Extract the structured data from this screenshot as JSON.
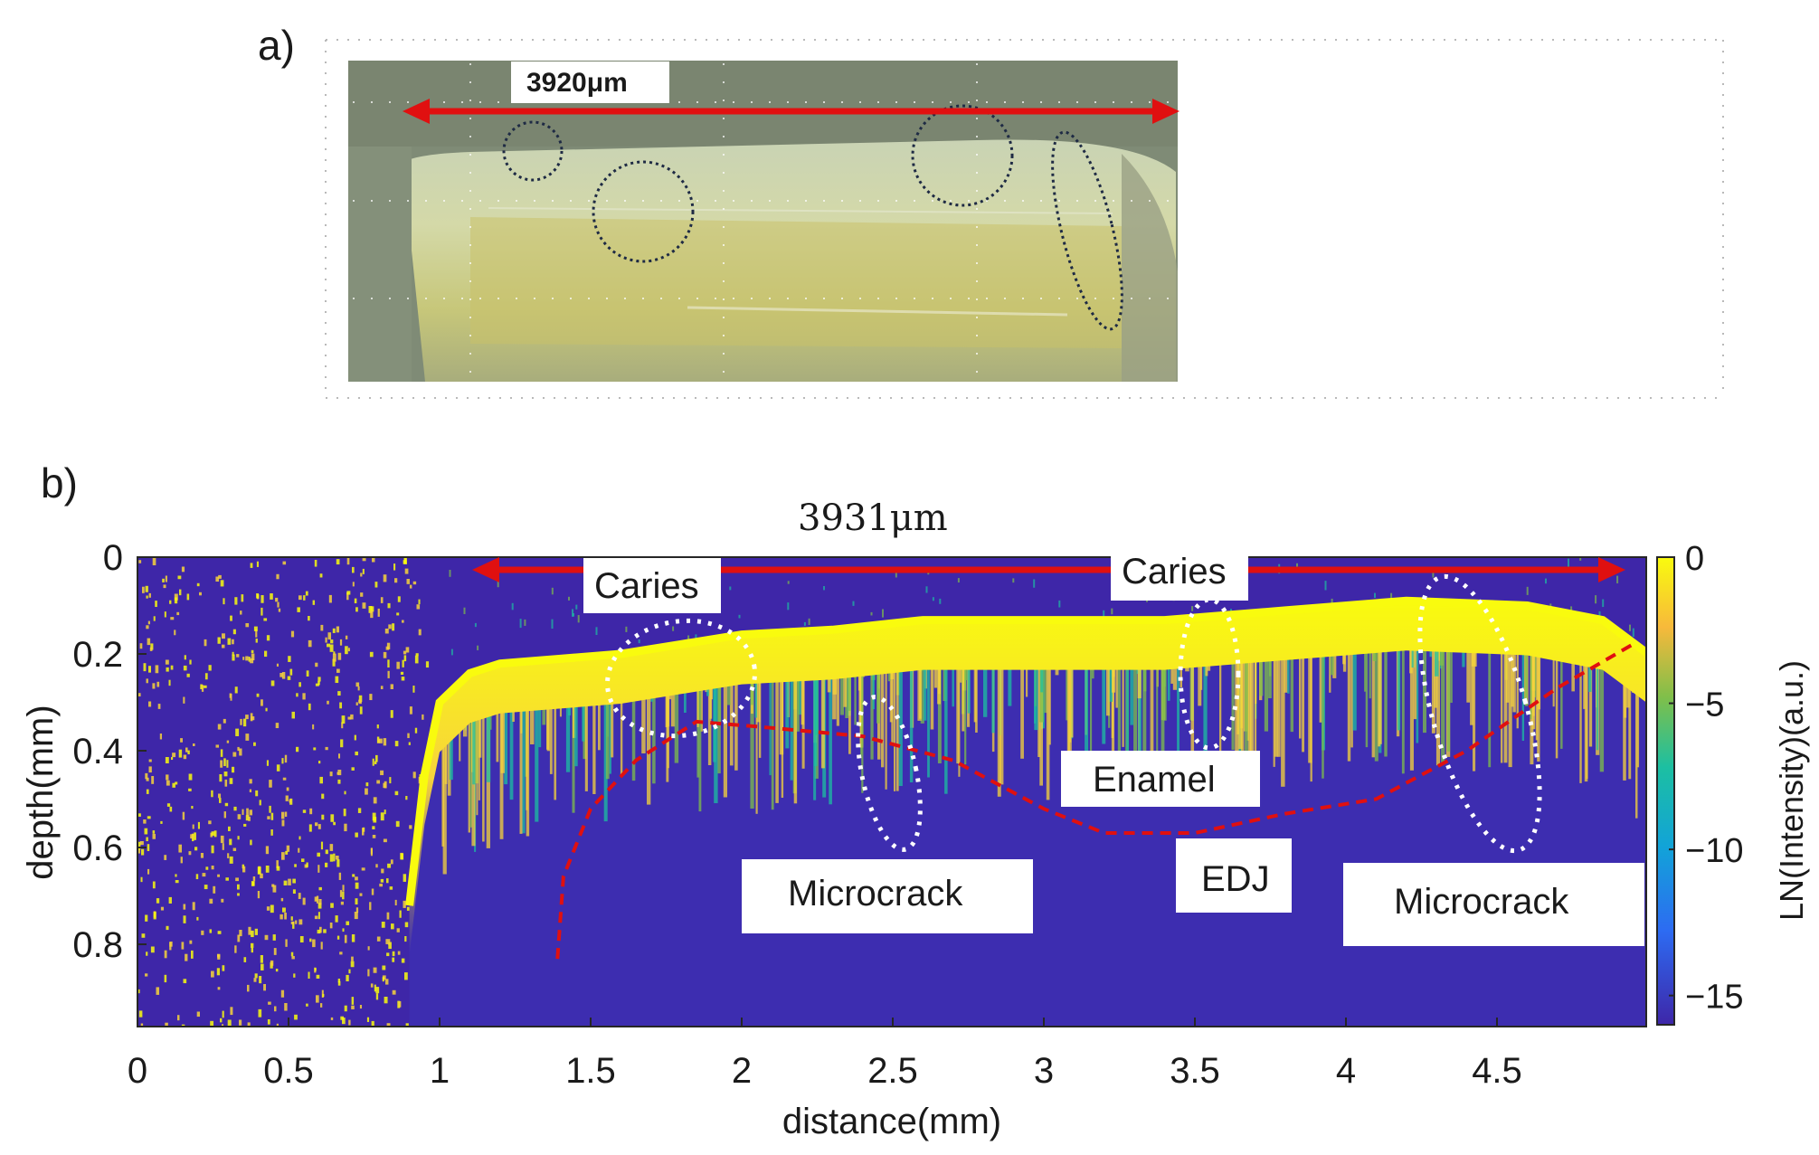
{
  "panel_a": {
    "label": "a)",
    "scale_text": "3920μm",
    "arrow_color": "#e01010"
  },
  "panel_b": {
    "label": "b)",
    "scale_text": "3931μm",
    "arrow_color": "#e01010"
  },
  "chart_data": {
    "type": "heatmap",
    "xlabel": "distance(mm)",
    "ylabel": "depth(mm)",
    "colorbar_label": "LN(Intensity)(a.u.)",
    "xlim": [
      0,
      5.0
    ],
    "ylim": [
      0,
      0.97
    ],
    "xticks": [
      0,
      0.5,
      1,
      1.5,
      2,
      2.5,
      3,
      3.5,
      4,
      4.5
    ],
    "xtick_labels": [
      "0",
      "0.5",
      "1",
      "1.5",
      "2",
      "2.5",
      "3",
      "3.5",
      "4",
      "4.5"
    ],
    "yticks": [
      0,
      0.2,
      0.4,
      0.6,
      0.8
    ],
    "ytick_labels": [
      "0",
      "0.2",
      "0.4",
      "0.6",
      "0.8"
    ],
    "colorbar_range": [
      -16,
      0
    ],
    "colorbar_ticks": [
      0,
      -5,
      -10,
      -15
    ],
    "colorbar_tick_labels": [
      "0",
      "−5",
      "−10",
      "−15"
    ],
    "colormap": [
      "#3e26a8",
      "#2d6bf2",
      "#12a3d8",
      "#1cbfa2",
      "#7fbf4a",
      "#f7b93b",
      "#f9fb0e"
    ],
    "annotations": [
      "Caries",
      "Caries",
      "Enamel",
      "EDJ",
      "Microcrack",
      "Microcrack"
    ],
    "surface_profile": [
      [
        0.9,
        0.72
      ],
      [
        0.95,
        0.45
      ],
      [
        1.0,
        0.3
      ],
      [
        1.1,
        0.24
      ],
      [
        1.2,
        0.22
      ],
      [
        1.4,
        0.21
      ],
      [
        1.6,
        0.2
      ],
      [
        1.8,
        0.18
      ],
      [
        2.0,
        0.16
      ],
      [
        2.3,
        0.15
      ],
      [
        2.6,
        0.13
      ],
      [
        3.0,
        0.13
      ],
      [
        3.4,
        0.13
      ],
      [
        3.8,
        0.11
      ],
      [
        4.2,
        0.09
      ],
      [
        4.6,
        0.1
      ],
      [
        4.85,
        0.13
      ],
      [
        5.0,
        0.2
      ]
    ],
    "edj_profile": [
      [
        1.39,
        0.83
      ],
      [
        1.41,
        0.66
      ],
      [
        1.5,
        0.52
      ],
      [
        1.65,
        0.42
      ],
      [
        1.85,
        0.34
      ],
      [
        2.05,
        0.35
      ],
      [
        2.4,
        0.37
      ],
      [
        2.7,
        0.42
      ],
      [
        3.0,
        0.52
      ],
      [
        3.2,
        0.57
      ],
      [
        3.5,
        0.57
      ],
      [
        3.8,
        0.53
      ],
      [
        4.1,
        0.5
      ],
      [
        4.4,
        0.4
      ],
      [
        4.7,
        0.27
      ],
      [
        4.95,
        0.18
      ]
    ]
  }
}
